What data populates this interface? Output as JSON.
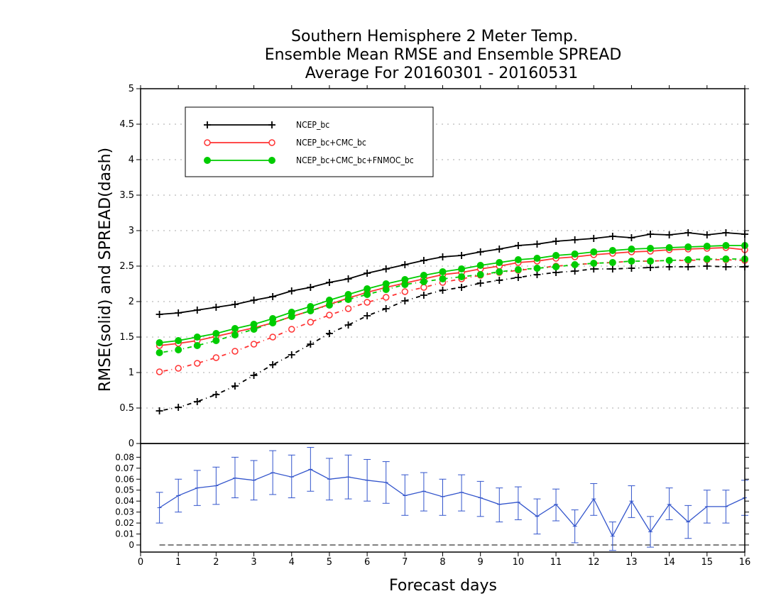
{
  "title": {
    "line1": "Southern Hemisphere 2 Meter Temp.",
    "line2": "Ensemble Mean RMSE and Ensemble SPREAD",
    "line3": "Average For 20160301 - 20160531"
  },
  "chart_data": [
    {
      "type": "line",
      "ylabel": "RMSE(solid)  and  SPREAD(dash)",
      "xlim": [
        0,
        16
      ],
      "ylim": [
        0,
        5
      ],
      "y_ticks": [
        "0",
        "0.5",
        "1",
        "1.5",
        "2",
        "2.5",
        "3",
        "3.5",
        "4",
        "4.5",
        "5"
      ],
      "grid": true,
      "legend_position": "top-left",
      "x": [
        0.5,
        1,
        1.5,
        2,
        2.5,
        3,
        3.5,
        4,
        4.5,
        5,
        5.5,
        6,
        6.5,
        7,
        7.5,
        8,
        8.5,
        9,
        9.5,
        10,
        10.5,
        11,
        11.5,
        12,
        12.5,
        13,
        13.5,
        14,
        14.5,
        15,
        15.5,
        16
      ],
      "series": [
        {
          "name": "NCEP_bc",
          "color": "#000000",
          "marker": "plus",
          "rmse": [
            1.82,
            1.84,
            1.88,
            1.92,
            1.96,
            2.02,
            2.07,
            2.15,
            2.2,
            2.27,
            2.32,
            2.4,
            2.46,
            2.52,
            2.58,
            2.63,
            2.65,
            2.7,
            2.74,
            2.79,
            2.81,
            2.85,
            2.87,
            2.89,
            2.92,
            2.9,
            2.95,
            2.94,
            2.97,
            2.94,
            2.97,
            2.95
          ],
          "spread": [
            0.46,
            0.51,
            0.59,
            0.69,
            0.81,
            0.96,
            1.11,
            1.25,
            1.4,
            1.55,
            1.67,
            1.8,
            1.9,
            2.01,
            2.09,
            2.16,
            2.2,
            2.26,
            2.3,
            2.34,
            2.38,
            2.41,
            2.43,
            2.46,
            2.46,
            2.47,
            2.48,
            2.49,
            2.49,
            2.5,
            2.49,
            2.49
          ]
        },
        {
          "name": "NCEP_bc+CMC_bc",
          "color": "#ff3333",
          "marker": "open-circle",
          "rmse": [
            1.38,
            1.41,
            1.45,
            1.51,
            1.57,
            1.63,
            1.7,
            1.79,
            1.87,
            1.96,
            2.05,
            2.13,
            2.2,
            2.26,
            2.32,
            2.38,
            2.41,
            2.46,
            2.5,
            2.55,
            2.57,
            2.61,
            2.63,
            2.66,
            2.68,
            2.7,
            2.71,
            2.73,
            2.74,
            2.75,
            2.76,
            2.73
          ],
          "spread": [
            1.01,
            1.06,
            1.13,
            1.21,
            1.3,
            1.4,
            1.5,
            1.61,
            1.71,
            1.81,
            1.9,
            1.99,
            2.06,
            2.14,
            2.2,
            2.27,
            2.32,
            2.37,
            2.41,
            2.44,
            2.47,
            2.5,
            2.52,
            2.54,
            2.55,
            2.57,
            2.57,
            2.58,
            2.58,
            2.59,
            2.59,
            2.58
          ]
        },
        {
          "name": "NCEP_bc+CMC_bc+FNMOC_bc",
          "color": "#00cc00",
          "marker": "filled-circle",
          "rmse": [
            1.42,
            1.45,
            1.5,
            1.55,
            1.62,
            1.68,
            1.76,
            1.85,
            1.93,
            2.02,
            2.1,
            2.18,
            2.25,
            2.31,
            2.37,
            2.42,
            2.46,
            2.51,
            2.55,
            2.59,
            2.61,
            2.65,
            2.67,
            2.7,
            2.72,
            2.74,
            2.75,
            2.76,
            2.77,
            2.78,
            2.79,
            2.79
          ],
          "spread": [
            1.28,
            1.32,
            1.38,
            1.45,
            1.53,
            1.61,
            1.7,
            1.79,
            1.87,
            1.95,
            2.03,
            2.1,
            2.17,
            2.24,
            2.28,
            2.32,
            2.35,
            2.38,
            2.42,
            2.45,
            2.47,
            2.49,
            2.52,
            2.54,
            2.55,
            2.57,
            2.57,
            2.58,
            2.59,
            2.6,
            2.6,
            2.6
          ]
        }
      ]
    },
    {
      "type": "line",
      "xlabel": "Forecast days",
      "xlim": [
        0,
        16
      ],
      "x_ticks": [
        "0",
        "1",
        "2",
        "3",
        "4",
        "5",
        "6",
        "7",
        "8",
        "9",
        "10",
        "11",
        "12",
        "13",
        "14",
        "15",
        "16"
      ],
      "ylim": [
        0,
        0.088
      ],
      "y_ticks": [
        "0",
        "0.01",
        "0.02",
        "0.03",
        "0.04",
        "0.05",
        "0.06",
        "0.07",
        "0.08"
      ],
      "zero_line": "dashed",
      "color": "#3355cc",
      "x": [
        0.5,
        1,
        1.5,
        2,
        2.5,
        3,
        3.5,
        4,
        4.5,
        5,
        5.5,
        6,
        6.5,
        7,
        7.5,
        8,
        8.5,
        9,
        9.5,
        10,
        10.5,
        11,
        11.5,
        12,
        12.5,
        13,
        13.5,
        14,
        14.5,
        15,
        15.5,
        16
      ],
      "values": [
        0.034,
        0.045,
        0.052,
        0.054,
        0.061,
        0.059,
        0.066,
        0.062,
        0.069,
        0.06,
        0.062,
        0.059,
        0.057,
        0.045,
        0.049,
        0.044,
        0.048,
        0.043,
        0.037,
        0.039,
        0.026,
        0.037,
        0.017,
        0.042,
        0.008,
        0.04,
        0.012,
        0.037,
        0.021,
        0.035,
        0.035,
        0.043
      ],
      "error_low": [
        0.02,
        0.03,
        0.036,
        0.037,
        0.043,
        0.041,
        0.046,
        0.043,
        0.049,
        0.041,
        0.042,
        0.04,
        0.038,
        0.027,
        0.031,
        0.027,
        0.031,
        0.026,
        0.021,
        0.023,
        0.01,
        0.022,
        0.002,
        0.027,
        -0.005,
        0.025,
        -0.002,
        0.023,
        0.006,
        0.02,
        0.02,
        0.027
      ],
      "error_high": [
        0.048,
        0.06,
        0.068,
        0.071,
        0.08,
        0.077,
        0.086,
        0.082,
        0.089,
        0.079,
        0.082,
        0.078,
        0.076,
        0.064,
        0.066,
        0.06,
        0.064,
        0.058,
        0.052,
        0.053,
        0.042,
        0.051,
        0.032,
        0.056,
        0.021,
        0.054,
        0.026,
        0.052,
        0.036,
        0.05,
        0.05,
        0.059
      ]
    }
  ]
}
